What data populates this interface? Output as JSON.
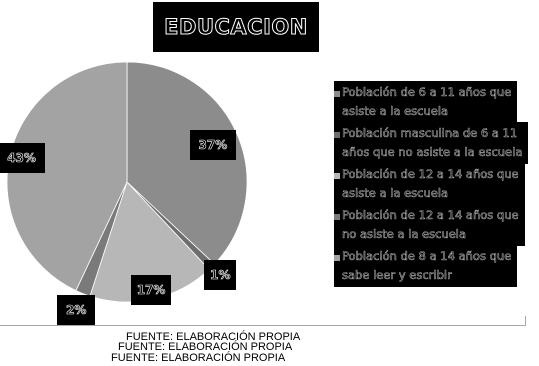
{
  "chart_data": {
    "type": "pie",
    "title": "EDUCACION",
    "categories": [
      "Población de 6 a 11 años que asiste a la escuela",
      "Población masculina de 6 a 11 años que no asiste a la escuela",
      "Población de 12 a 14 años que asiste a la escuela",
      "Población de 12 a 14 años que no asiste a la escuela",
      "Población de 8 a 14 años que sabe leer y escribir"
    ],
    "values": [
      37,
      1,
      17,
      2,
      43
    ],
    "data_labels": [
      "37%",
      "1%",
      "17%",
      "2%",
      "43%"
    ],
    "colors": [
      "#8c8c8c",
      "#6e6e6e",
      "#b7b7b7",
      "#7a7a7a",
      "#a3a3a3"
    ],
    "legend_position": "right"
  },
  "legend": {
    "items": [
      "Población de 6 a 11 años que\nasiste a la escuela",
      "Población masculina de 6 a 11\naños que no asiste a la escuela",
      "Población de 12 a 14 años que\nasiste a la escuela",
      "Población de 12 a 14 años que\nno asiste a la escuela",
      "Población de 8 a 14 años que\nsabe leer y escribir"
    ]
  },
  "source": {
    "lines": [
      "FUENTE: ELABORACIÓN PROPIA",
      "FUENTE: ELABORACIÓN PROPIA",
      "FUENTE: ELABORACIÓN PROPIA"
    ]
  }
}
